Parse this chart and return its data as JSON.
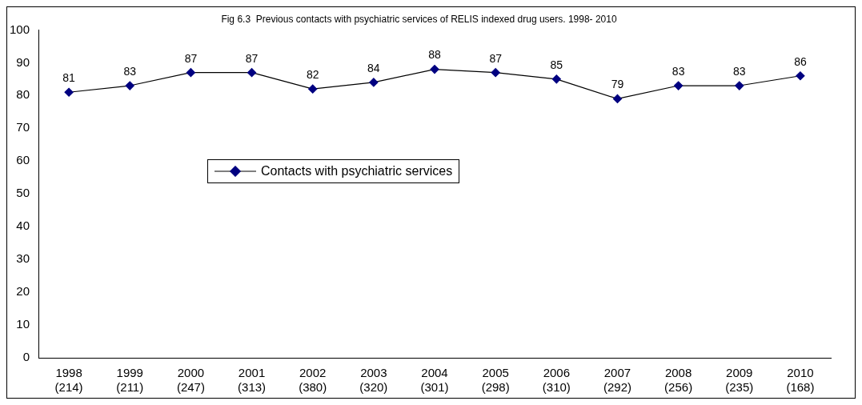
{
  "chart_data": {
    "type": "line",
    "title": "Fig 6.3  Previous contacts with psychiatric services of RELIS indexed drug users. 1998- 2010",
    "categories": [
      "1998 (214)",
      "1999 (211)",
      "2000 (247)",
      "2001 (313)",
      "2002 (380)",
      "2003 (320)",
      "2004 (301)",
      "2005 (298)",
      "2006 (310)",
      "2007 (292)",
      "2008 (256)",
      "2009 (235)",
      "2010 (168)"
    ],
    "series": [
      {
        "name": "Contacts with psychiatric services",
        "color": "#000080",
        "values": [
          81,
          83,
          87,
          87,
          82,
          84,
          88,
          87,
          85,
          79,
          83,
          83,
          86
        ]
      }
    ],
    "ylim": [
      0,
      100
    ],
    "yticks": [
      0,
      10,
      20,
      30,
      40,
      50,
      60,
      70,
      80,
      90,
      100
    ],
    "grid": false,
    "legend": "center left",
    "marker": "diamond",
    "line_style": "solid",
    "data_labels": true
  }
}
